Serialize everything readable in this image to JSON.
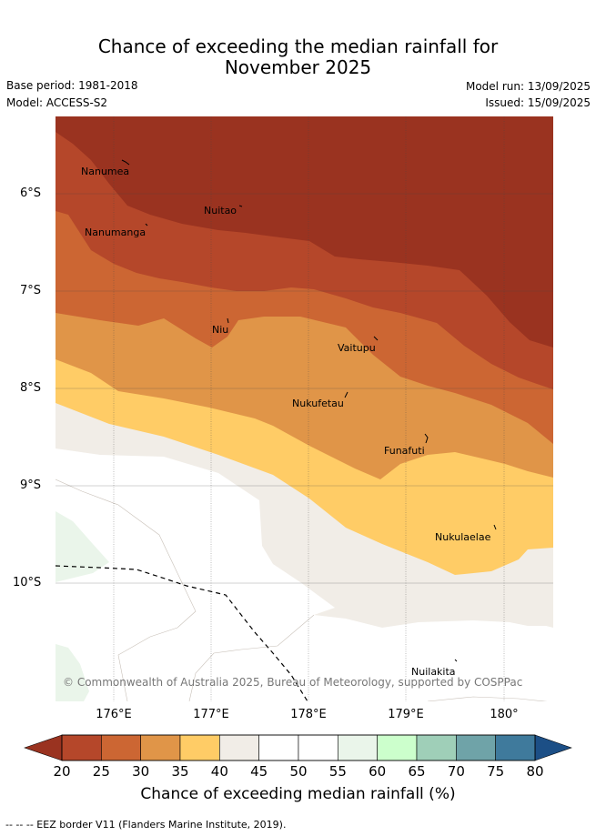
{
  "title_line1": "Chance of exceeding the median rainfall for",
  "title_line2": "November 2025",
  "base_period": "Base period: 1981-2018",
  "model": "Model: ACCESS-S2",
  "model_run": "Model run: 13/09/2025",
  "issued": "Issued: 15/09/2025",
  "lat_ticks": [
    "6°S",
    "7°S",
    "8°S",
    "9°S",
    "10°S"
  ],
  "lon_ticks": [
    "176°E",
    "177°E",
    "178°E",
    "179°E",
    "180°"
  ],
  "places": [
    "Nanumea",
    "Nuitao",
    "Nanumanga",
    "Niu",
    "Vaitupu",
    "Nukufetau",
    "Funafuti",
    "Nukulaelae",
    "Nuilakita"
  ],
  "copyright": "© Commonwealth of Australia 2025, Bureau of Meteorology, supported by COSPPac",
  "colorbar": {
    "ticks": [
      "20",
      "25",
      "30",
      "35",
      "40",
      "45",
      "50",
      "55",
      "60",
      "65",
      "70",
      "75",
      "80"
    ],
    "colors": [
      "#9a3320",
      "#b5472a",
      "#cc6633",
      "#e09548",
      "#ffcc66",
      "#f1ede7",
      "#ffffff",
      "#ffffff",
      "#eaf5ea",
      "#ccffcc",
      "#9fcfb8",
      "#6fa3a8",
      "#3f7a9c",
      "#1c4f86"
    ],
    "label": "Chance of exceeding median rainfall (%)"
  },
  "footer": "-- -- -- EEZ border V11 (Flanders Marine Institute, 2019)."
}
